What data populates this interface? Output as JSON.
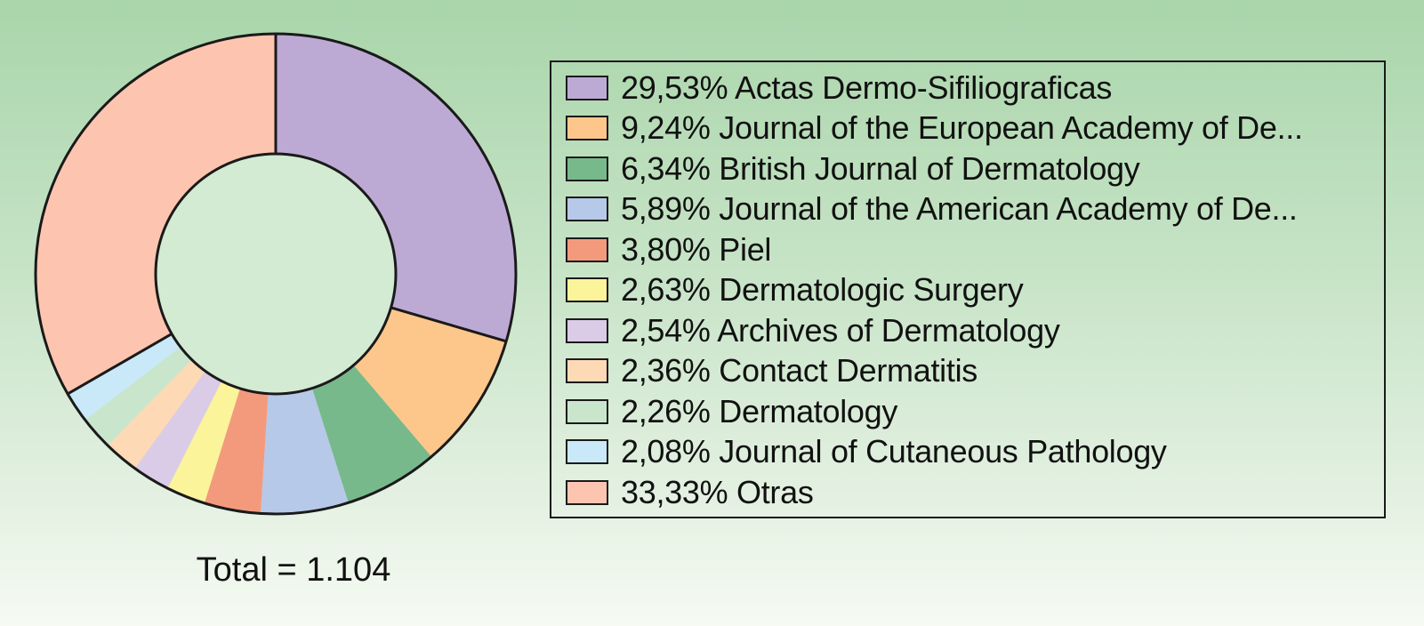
{
  "chart_data": {
    "type": "pie",
    "variant": "donut",
    "total_label": "Total = 1.104",
    "legend_position": "right",
    "slices": [
      {
        "label": "29,53% Actas Dermo-Sifiliograficas",
        "value": 29.53,
        "color": "#bcaad5"
      },
      {
        "label": "9,24% Journal of the European Academy of De...",
        "value": 9.24,
        "color": "#fdc78c"
      },
      {
        "label": "6,34% British Journal of Dermatology",
        "value": 6.34,
        "color": "#78b98c"
      },
      {
        "label": "5,89% Journal of the American Academy of De...",
        "value": 5.89,
        "color": "#b6c9e8"
      },
      {
        "label": "3,80% Piel",
        "value": 3.8,
        "color": "#f49a7c"
      },
      {
        "label": "2,63% Dermatologic Surgery",
        "value": 2.63,
        "color": "#fbf49a"
      },
      {
        "label": "2,54% Archives of Dermatology",
        "value": 2.54,
        "color": "#dacbe6"
      },
      {
        "label": "2,36% Contact Dermatitis",
        "value": 2.36,
        "color": "#fdd9b5"
      },
      {
        "label": "2,26% Dermatology",
        "value": 2.26,
        "color": "#c9e6cc"
      },
      {
        "label": "2,08% Journal of Cutaneous Pathology",
        "value": 2.08,
        "color": "#c9e8f8"
      },
      {
        "label": "33,33%  Otras",
        "value": 33.33,
        "color": "#fdc5b0"
      }
    ]
  }
}
